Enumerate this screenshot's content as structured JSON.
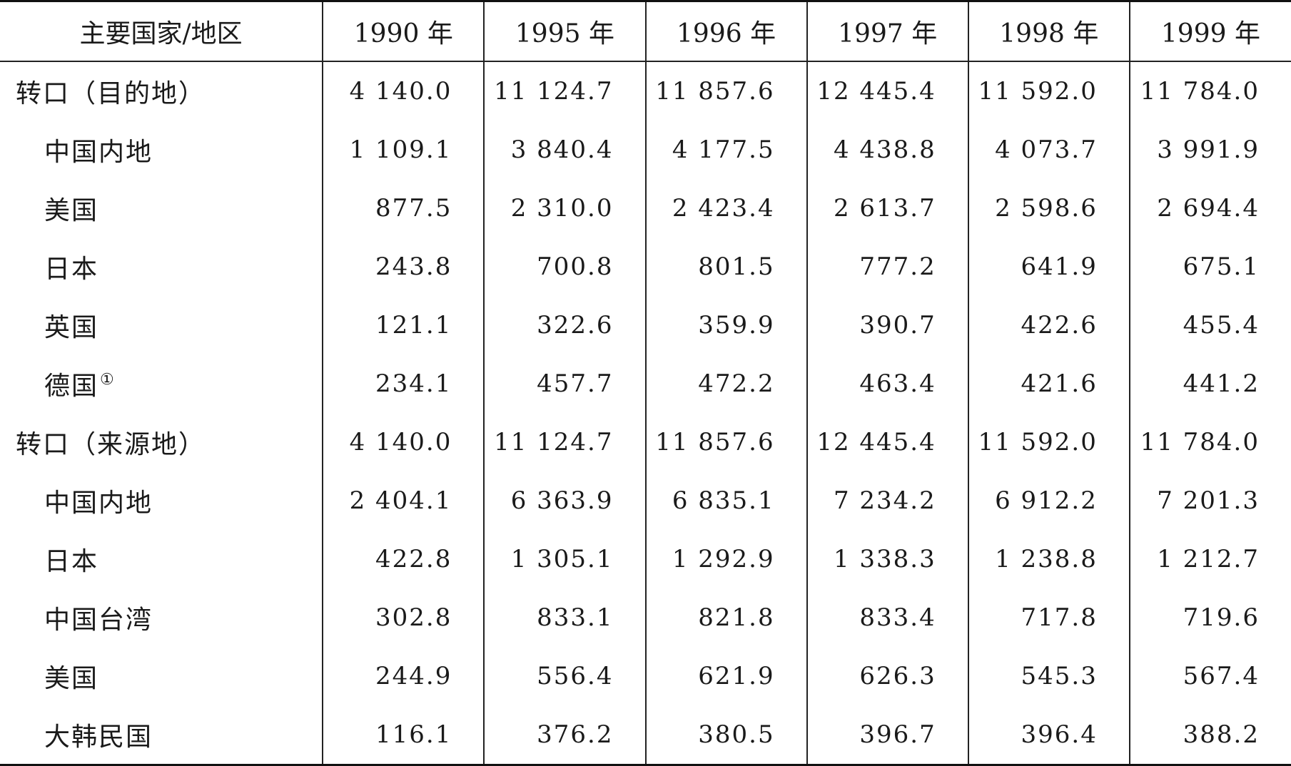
{
  "table": {
    "header": {
      "first_col": "主要国家/地区",
      "years": [
        "1990 年",
        "1995 年",
        "1996 年",
        "1997 年",
        "1998 年",
        "1999 年"
      ]
    },
    "rows": [
      {
        "kind": "group",
        "label": "转口（目的地）",
        "note": "",
        "values": [
          "4 140.0",
          "11 124.7",
          "11 857.6",
          "12 445.4",
          "11 592.0",
          "11 784.0"
        ]
      },
      {
        "kind": "sub",
        "label": "中国内地",
        "note": "",
        "values": [
          "1 109.1",
          "3 840.4",
          "4 177.5",
          "4 438.8",
          "4 073.7",
          "3 991.9"
        ]
      },
      {
        "kind": "sub",
        "label": "美国",
        "note": "",
        "values": [
          "877.5",
          "2 310.0",
          "2 423.4",
          "2 613.7",
          "2 598.6",
          "2 694.4"
        ]
      },
      {
        "kind": "sub",
        "label": "日本",
        "note": "",
        "values": [
          "243.8",
          "700.8",
          "801.5",
          "777.2",
          "641.9",
          "675.1"
        ]
      },
      {
        "kind": "sub",
        "label": "英国",
        "note": "",
        "values": [
          "121.1",
          "322.6",
          "359.9",
          "390.7",
          "422.6",
          "455.4"
        ]
      },
      {
        "kind": "sub",
        "label": "德国",
        "note": "①",
        "values": [
          "234.1",
          "457.7",
          "472.2",
          "463.4",
          "421.6",
          "441.2"
        ]
      },
      {
        "kind": "group",
        "label": "转口（来源地）",
        "note": "",
        "values": [
          "4 140.0",
          "11 124.7",
          "11 857.6",
          "12 445.4",
          "11 592.0",
          "11 784.0"
        ]
      },
      {
        "kind": "sub",
        "label": "中国内地",
        "note": "",
        "values": [
          "2 404.1",
          "6 363.9",
          "6 835.1",
          "7 234.2",
          "6 912.2",
          "7 201.3"
        ]
      },
      {
        "kind": "sub",
        "label": "日本",
        "note": "",
        "values": [
          "422.8",
          "1 305.1",
          "1 292.9",
          "1 338.3",
          "1 238.8",
          "1 212.7"
        ]
      },
      {
        "kind": "sub",
        "label": "中国台湾",
        "note": "",
        "values": [
          "302.8",
          "833.1",
          "821.8",
          "833.4",
          "717.8",
          "719.6"
        ]
      },
      {
        "kind": "sub",
        "label": "美国",
        "note": "",
        "values": [
          "244.9",
          "556.4",
          "621.9",
          "626.3",
          "545.3",
          "567.4"
        ]
      },
      {
        "kind": "sub",
        "label": "大韩民国",
        "note": "",
        "values": [
          "116.1",
          "376.2",
          "380.5",
          "396.7",
          "396.4",
          "388.2"
        ]
      }
    ]
  }
}
